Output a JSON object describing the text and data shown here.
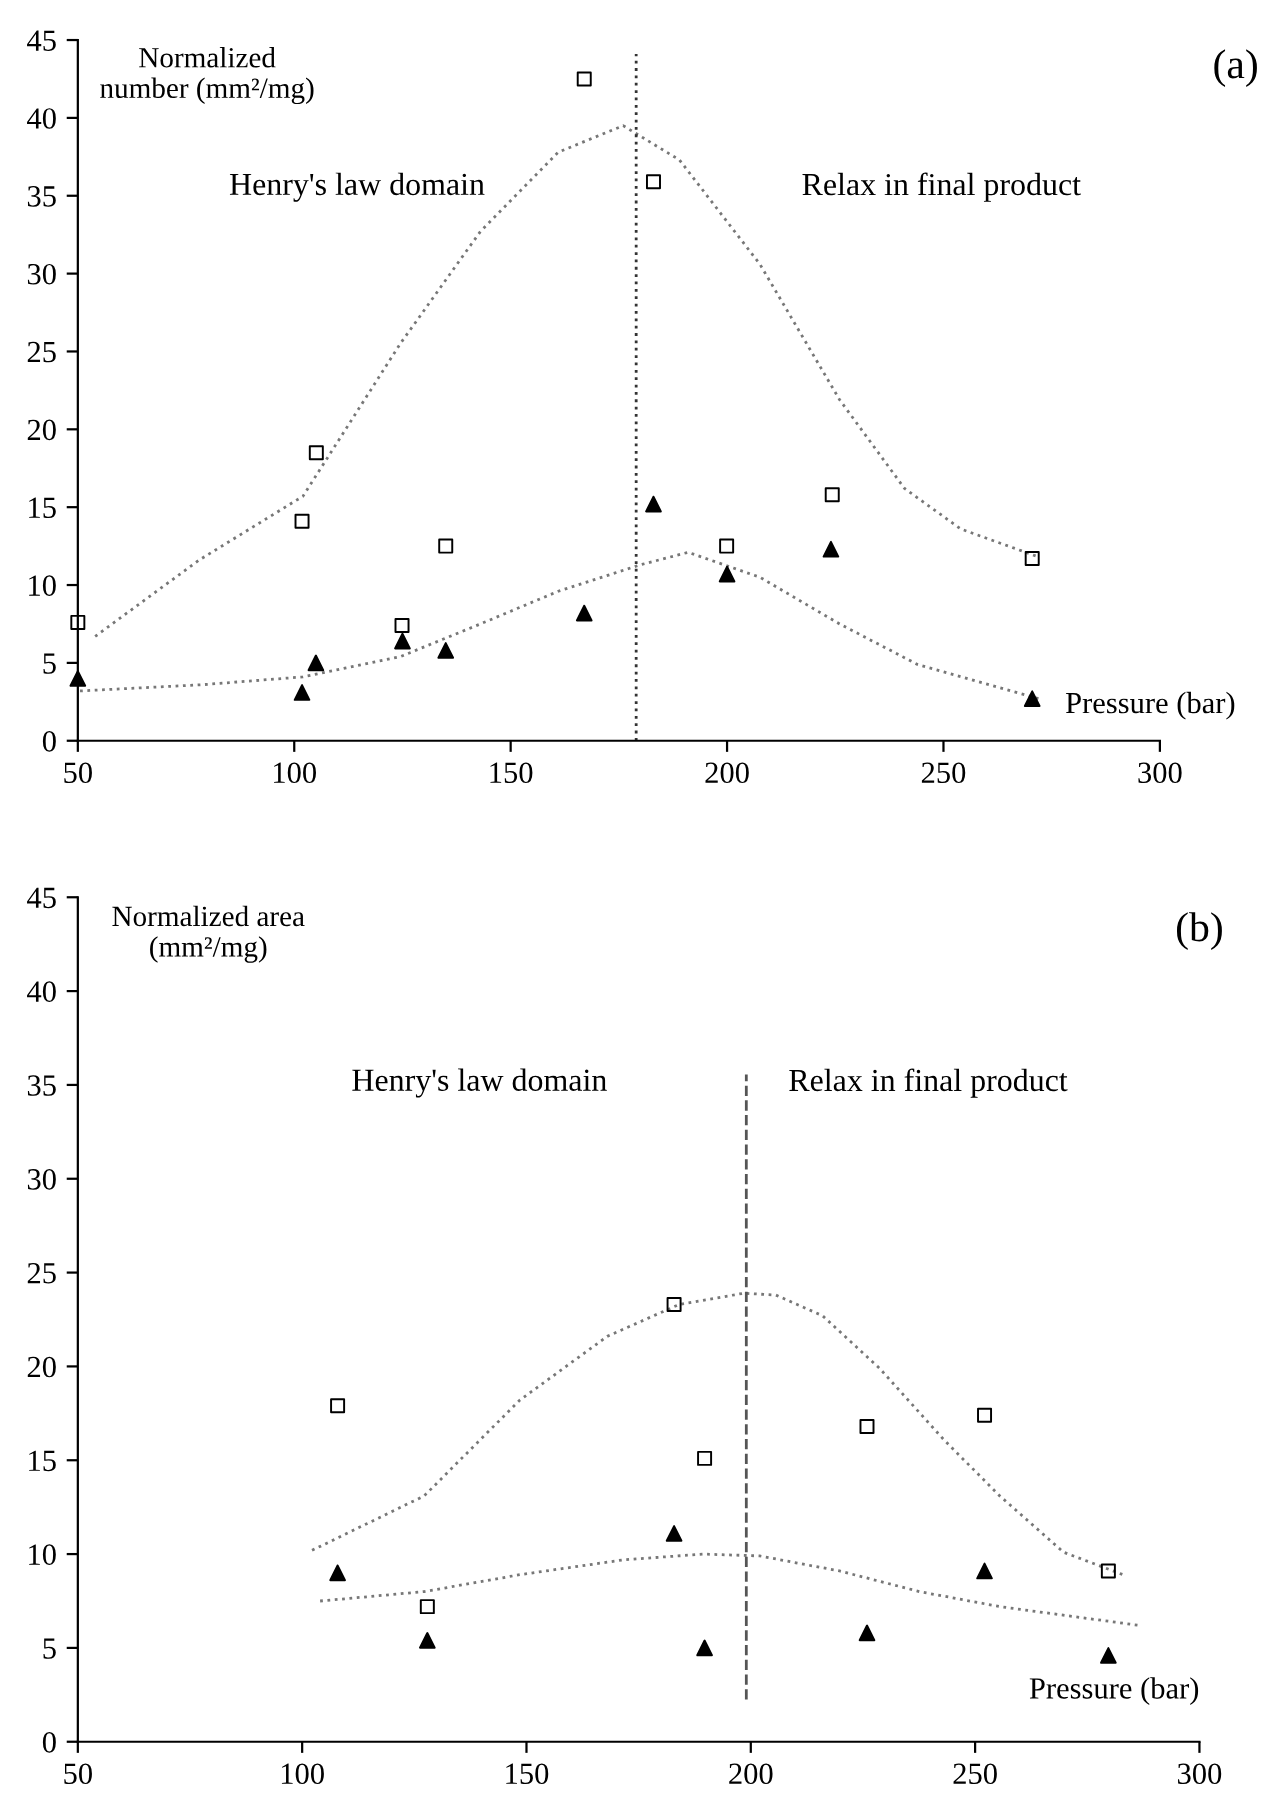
{
  "chart_data": [
    {
      "type": "scatter",
      "ylabel": "Normalized\nnumber (mm²/mg)",
      "xlabel": "Pressure (bar)",
      "annotations": [
        "Henry's law domain",
        "Relax in final product",
        "(a)"
      ],
      "xlim": [
        50,
        300
      ],
      "ylim": [
        0,
        45
      ],
      "xticks": [
        50,
        100,
        150,
        200,
        250,
        300
      ],
      "yticks": [
        0,
        5,
        10,
        15,
        20,
        25,
        30,
        35,
        40,
        45
      ],
      "grid": false,
      "legend": false,
      "ref_lines": [
        {
          "axis": "x",
          "value": 179,
          "color": "#333333",
          "line_style": "dotted"
        }
      ],
      "series": [
        {
          "marker": "square",
          "color": "#000000",
          "x": [
            50,
            101.8,
            105.1,
            124.9,
            135,
            167,
            183,
            199.9,
            224.3,
            270.5
          ],
          "values": [
            7.6,
            14.1,
            18.5,
            7.4,
            12.5,
            42.5,
            35.9,
            12.5,
            15.8,
            11.7
          ]
        },
        {
          "marker": "triangle",
          "color": "#000000",
          "x": [
            50,
            101.8,
            105,
            125,
            135,
            167,
            183,
            200,
            224,
            270.5
          ],
          "values": [
            4.0,
            3.1,
            5.0,
            6.4,
            5.8,
            8.2,
            15.2,
            10.7,
            12.3,
            2.7
          ]
        },
        {
          "type": "line",
          "line_style": "dotted",
          "color": "#777777",
          "x": [
            54,
            78,
            102,
            124.5,
            143,
            161,
            176,
            189,
            207.6,
            226,
            241,
            254,
            272
          ],
          "values": [
            6.7,
            11.6,
            15.7,
            25.5,
            32.7,
            37.8,
            39.5,
            37.3,
            30.6,
            21.9,
            16.2,
            13.6,
            11.8
          ]
        },
        {
          "type": "line",
          "line_style": "dotted",
          "color": "#777777",
          "x": [
            50.5,
            78.8,
            102,
            124.5,
            143,
            161,
            180,
            191,
            207.6,
            226,
            244,
            272
          ],
          "values": [
            3.2,
            3.6,
            4.1,
            5.4,
            7.5,
            9.6,
            11.3,
            12.1,
            10.5,
            7.5,
            4.9,
            2.7
          ]
        }
      ]
    },
    {
      "type": "scatter",
      "ylabel": "Normalized area\n(mm²/mg)",
      "xlabel": "Pressure (bar)",
      "annotations": [
        "Henry's law domain",
        "Relax in final product",
        "(b)"
      ],
      "xlim": [
        50,
        300
      ],
      "ylim": [
        0,
        45
      ],
      "xticks": [
        50,
        100,
        150,
        200,
        250,
        300
      ],
      "yticks": [
        0,
        5,
        10,
        15,
        20,
        25,
        30,
        35,
        40,
        45
      ],
      "grid": false,
      "legend": false,
      "ref_lines": [
        {
          "axis": "x",
          "value": 199,
          "color": "#555555",
          "line_style": "dashed"
        }
      ],
      "series": [
        {
          "marker": "square",
          "color": "#000000",
          "x": [
            107.9,
            127.9,
            182.9,
            189.7,
            225.9,
            252.1,
            279.7
          ],
          "values": [
            17.9,
            7.2,
            23.3,
            15.1,
            16.8,
            17.4,
            9.1
          ]
        },
        {
          "marker": "triangle",
          "color": "#000000",
          "x": [
            107.9,
            127.9,
            182.9,
            189.7,
            225.9,
            252.1,
            279.7
          ],
          "values": [
            9.0,
            5.4,
            11.1,
            5.0,
            5.8,
            9.1,
            4.6
          ]
        },
        {
          "type": "line",
          "line_style": "dotted",
          "color": "#777777",
          "x": [
            102.2,
            127.2,
            148.5,
            168,
            184,
            198.4,
            205.6,
            216,
            228.7,
            243,
            255.5,
            269.7,
            283
          ],
          "values": [
            10.2,
            13.1,
            18.2,
            21.6,
            23.3,
            23.9,
            23.8,
            22.7,
            19.9,
            16.1,
            13.1,
            10.1,
            8.9
          ]
        },
        {
          "type": "line",
          "line_style": "dotted",
          "color": "#777777",
          "x": [
            104,
            127.2,
            148.5,
            171.8,
            189.6,
            202,
            219.8,
            237.6,
            255.5,
            286.6
          ],
          "values": [
            7.5,
            8.0,
            8.9,
            9.7,
            10.0,
            9.9,
            9.1,
            8.0,
            7.2,
            6.2
          ]
        }
      ]
    }
  ]
}
